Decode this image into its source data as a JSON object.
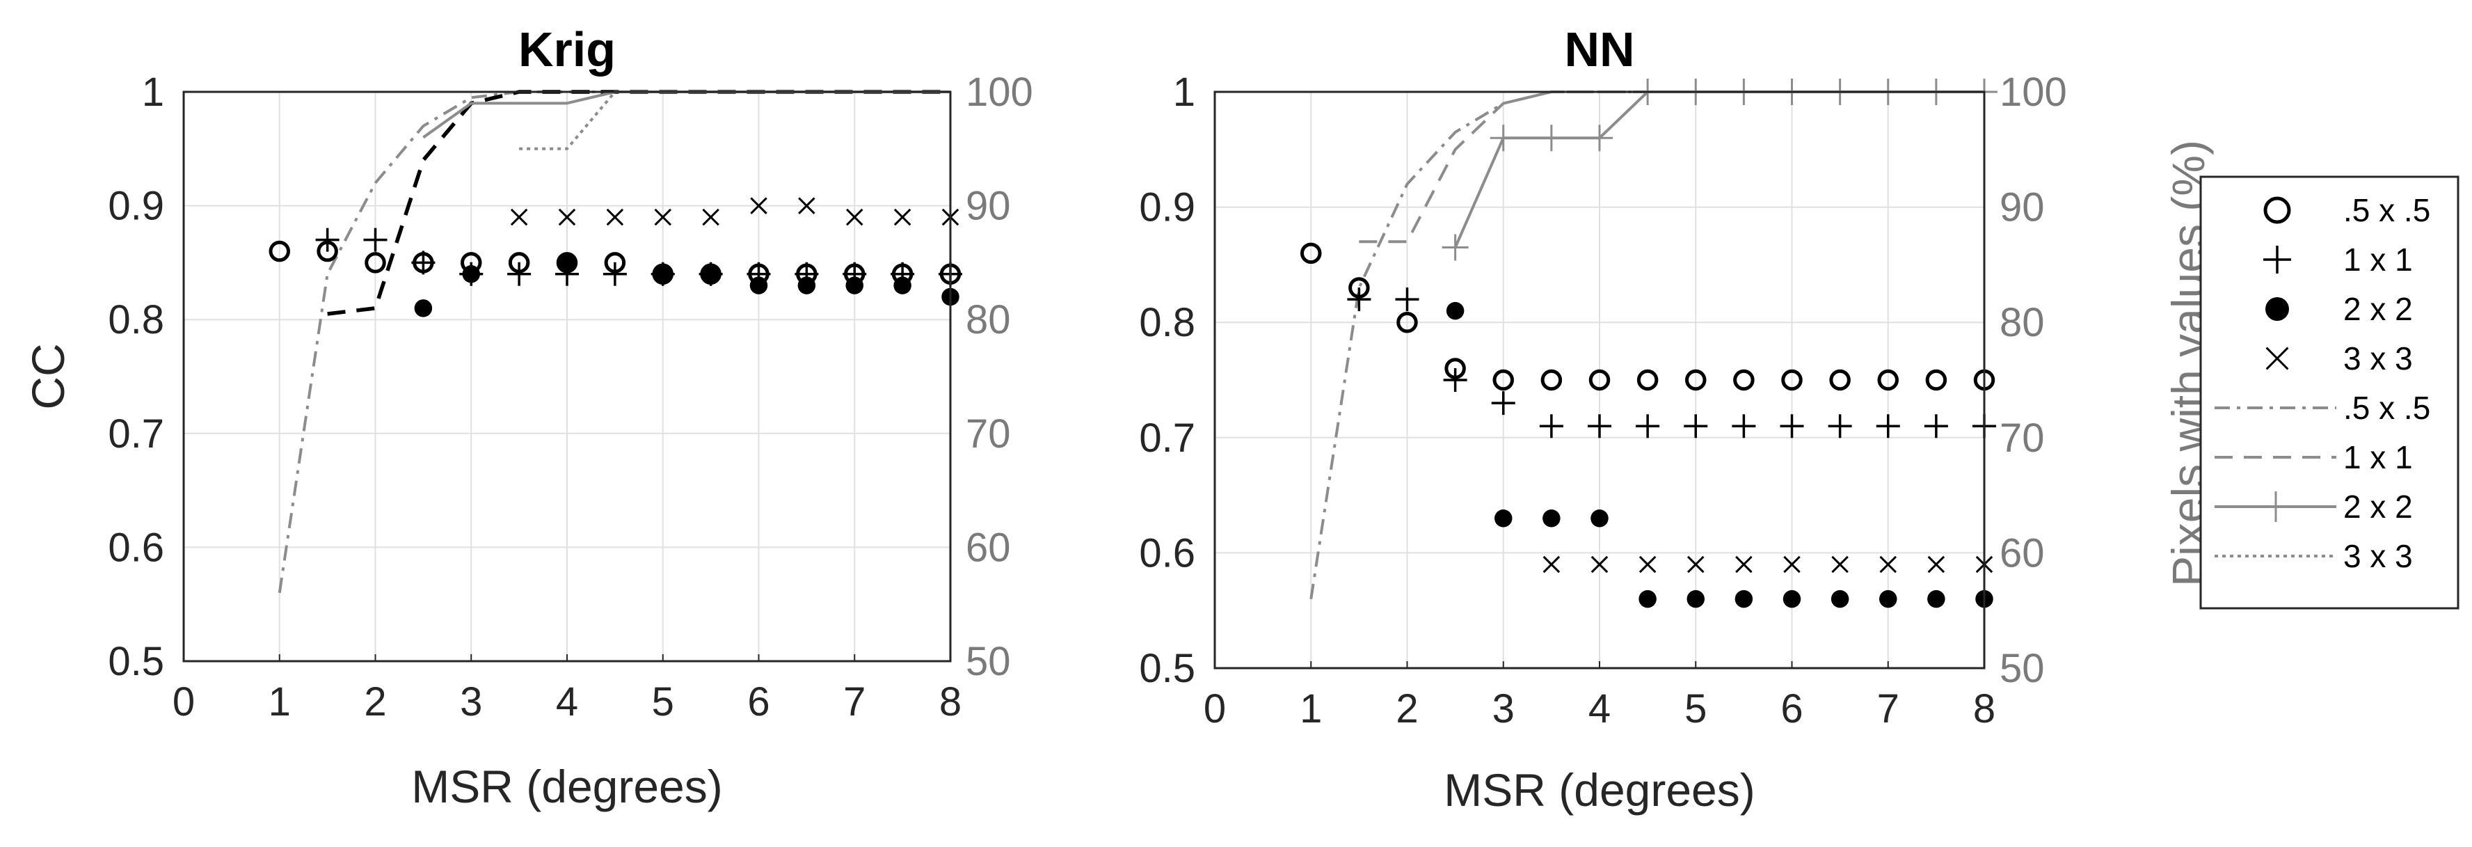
{
  "colors": {
    "axis": "#262626",
    "right_axis": "#7a7a7a",
    "grid": "#e0e0e0",
    "marker": "#000000",
    "pct_line": "#8c8c8c",
    "krig_1x1_line": "#000000"
  },
  "legend": {
    "marker_entries": [
      {
        "label": ".5 x .5",
        "symbol": "open-circle-icon"
      },
      {
        "label": "1 x 1",
        "symbol": "plus-icon"
      },
      {
        "label": "2 x 2",
        "symbol": "filled-circle-icon"
      },
      {
        "label": "3 x 3",
        "symbol": "cross-icon"
      }
    ],
    "line_entries": [
      {
        "label": ".5 x .5",
        "style": "dash-dot"
      },
      {
        "label": "1 x 1",
        "style": "dashed"
      },
      {
        "label": "2 x 2",
        "style": "solid-plus"
      },
      {
        "label": "3 x 3",
        "style": "dotted"
      }
    ]
  },
  "chart_data": [
    {
      "type": "scatter",
      "title": "Krig",
      "xlabel": "MSR (degrees)",
      "ylabel": "CC",
      "y2label": "",
      "xlim": [
        0,
        8
      ],
      "ylim": [
        0.5,
        1
      ],
      "y2lim": [
        50,
        100
      ],
      "xticks": [
        "0",
        "1",
        "2",
        "3",
        "4",
        "5",
        "6",
        "7",
        "8"
      ],
      "yticks": [
        "0.5",
        "0.6",
        "0.7",
        "0.8",
        "0.9",
        "1"
      ],
      "y2ticks": [
        "50",
        "60",
        "70",
        "80",
        "90",
        "100"
      ],
      "grid": true,
      "cc_series": [
        {
          "name": ".5 x .5",
          "marker": "circle-open",
          "x": [
            1,
            1.5,
            2,
            2.5,
            3,
            3.5,
            4,
            4.5,
            5,
            5.5,
            6,
            6.5,
            7,
            7.5,
            8
          ],
          "y": [
            0.86,
            0.86,
            0.85,
            0.85,
            0.85,
            0.85,
            0.85,
            0.85,
            0.84,
            0.84,
            0.84,
            0.84,
            0.84,
            0.84,
            0.84
          ]
        },
        {
          "name": "1 x 1",
          "marker": "plus",
          "x": [
            1.5,
            2,
            2.5,
            3,
            3.5,
            4,
            4.5,
            5,
            5.5,
            6,
            6.5,
            7,
            7.5,
            8
          ],
          "y": [
            0.87,
            0.87,
            0.85,
            0.84,
            0.84,
            0.84,
            0.84,
            0.84,
            0.84,
            0.84,
            0.84,
            0.84,
            0.84,
            0.84
          ]
        },
        {
          "name": "2 x 2",
          "marker": "circle-filled",
          "x": [
            2.5,
            3,
            4,
            5,
            5.5,
            6,
            6.5,
            7,
            7.5,
            8
          ],
          "y": [
            0.81,
            0.84,
            0.85,
            0.84,
            0.84,
            0.83,
            0.83,
            0.83,
            0.83,
            0.82
          ]
        },
        {
          "name": "3 x 3",
          "marker": "cross",
          "x": [
            3.5,
            4,
            4.5,
            5,
            5.5,
            6,
            6.5,
            7,
            7.5,
            8
          ],
          "y": [
            0.89,
            0.89,
            0.89,
            0.89,
            0.89,
            0.9,
            0.9,
            0.89,
            0.89,
            0.89
          ]
        }
      ],
      "pct_series": [
        {
          "name": ".5 x .5",
          "style": "dash-dot",
          "x": [
            1,
            1.5,
            2,
            2.5,
            3,
            3.5,
            4,
            8
          ],
          "y": [
            56,
            84,
            92,
            97,
            99.5,
            100,
            100,
            100
          ]
        },
        {
          "name": "1 x 1",
          "style": "dashed-black",
          "x": [
            1.5,
            2,
            2.5,
            3,
            3.5,
            4,
            8
          ],
          "y": [
            80.5,
            81,
            94,
            99,
            100,
            100,
            100
          ]
        },
        {
          "name": "2 x 2",
          "style": "solid",
          "x": [
            2.5,
            3,
            3.5,
            4,
            4.5,
            8
          ],
          "y": [
            96,
            99,
            99,
            99,
            100,
            100
          ]
        },
        {
          "name": "3 x 3",
          "style": "dotted",
          "x": [
            3.5,
            4,
            4.5,
            8
          ],
          "y": [
            95,
            95,
            100,
            100
          ]
        }
      ]
    },
    {
      "type": "scatter",
      "title": "NN",
      "xlabel": "MSR (degrees)",
      "ylabel": "",
      "y2label": "Pixels with values (%)",
      "xlim": [
        0,
        8
      ],
      "ylim": [
        0.5,
        1
      ],
      "y2lim": [
        50,
        100
      ],
      "xticks": [
        "0",
        "1",
        "2",
        "3",
        "4",
        "5",
        "6",
        "7",
        "8"
      ],
      "yticks": [
        "0.5",
        "0.6",
        "0.7",
        "0.8",
        "0.9",
        "1"
      ],
      "y2ticks": [
        "50",
        "60",
        "70",
        "80",
        "90",
        "100"
      ],
      "grid": true,
      "cc_series": [
        {
          "name": ".5 x .5",
          "marker": "circle-open",
          "x": [
            1,
            1.5,
            2,
            2.5,
            3,
            3.5,
            4,
            4.5,
            5,
            5.5,
            6,
            6.5,
            7,
            7.5,
            8
          ],
          "y": [
            0.86,
            0.83,
            0.8,
            0.76,
            0.75,
            0.75,
            0.75,
            0.75,
            0.75,
            0.75,
            0.75,
            0.75,
            0.75,
            0.75,
            0.75
          ]
        },
        {
          "name": "1 x 1",
          "marker": "plus",
          "x": [
            1.5,
            2,
            2.5,
            3,
            3.5,
            4,
            4.5,
            5,
            5.5,
            6,
            6.5,
            7,
            7.5,
            8
          ],
          "y": [
            0.82,
            0.82,
            0.75,
            0.73,
            0.71,
            0.71,
            0.71,
            0.71,
            0.71,
            0.71,
            0.71,
            0.71,
            0.71,
            0.71
          ]
        },
        {
          "name": "2 x 2",
          "marker": "circle-filled",
          "x": [
            2.5,
            3,
            3.5,
            4,
            4.5,
            5,
            5.5,
            6,
            6.5,
            7,
            7.5,
            8
          ],
          "y": [
            0.81,
            0.63,
            0.63,
            0.63,
            0.56,
            0.56,
            0.56,
            0.56,
            0.56,
            0.56,
            0.56,
            0.56
          ]
        },
        {
          "name": "3 x 3",
          "marker": "cross",
          "x": [
            3.5,
            4,
            4.5,
            5,
            5.5,
            6,
            6.5,
            7,
            7.5,
            8
          ],
          "y": [
            0.59,
            0.59,
            0.59,
            0.59,
            0.59,
            0.59,
            0.59,
            0.59,
            0.59,
            0.59
          ]
        }
      ],
      "pct_series": [
        {
          "name": ".5 x .5",
          "style": "dash-dot",
          "x": [
            1,
            1.5,
            2,
            2.5,
            3,
            3.5,
            4,
            8
          ],
          "y": [
            56,
            83,
            92,
            96.5,
            99,
            100,
            100,
            100
          ]
        },
        {
          "name": "1 x 1",
          "style": "dashed",
          "x": [
            1.5,
            2,
            2.5,
            3,
            3.5,
            4,
            8
          ],
          "y": [
            87,
            87,
            95,
            99,
            100,
            100,
            100
          ]
        },
        {
          "name": "2 x 2",
          "style": "solid-plus",
          "x": [
            2.5,
            3,
            3.5,
            4,
            4.5,
            5,
            5.5,
            6,
            6.5,
            7,
            7.5,
            8
          ],
          "y": [
            86.5,
            96,
            96,
            96,
            100,
            100,
            100,
            100,
            100,
            100,
            100,
            100
          ]
        },
        {
          "name": "3 x 3",
          "style": "dotted",
          "x": [
            3.5,
            4,
            8
          ],
          "y": [
            100,
            100,
            100
          ]
        }
      ]
    }
  ]
}
